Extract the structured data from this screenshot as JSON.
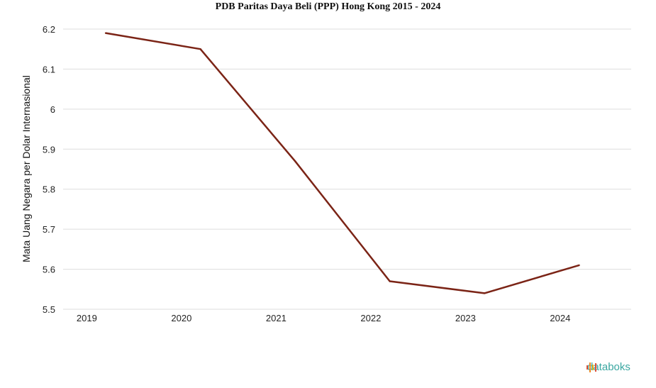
{
  "chart_data": {
    "type": "line",
    "title": "PDB Paritas Daya Beli (PPP) Hong Kong 2015 - 2024",
    "xlabel": "",
    "ylabel": "Mata Uang Negara per Dolar Internasional",
    "categories": [
      "2019",
      "2020",
      "2021",
      "2022",
      "2023",
      "2024"
    ],
    "series": [
      {
        "values": [
          6.19,
          6.15,
          5.87,
          5.57,
          5.54,
          5.61
        ]
      }
    ],
    "ylim": [
      5.5,
      6.2
    ],
    "yticks": [
      "5.5",
      "5.6",
      "5.7",
      "5.8",
      "5.9",
      "6",
      "6.1",
      "6.2"
    ],
    "grid": true,
    "line_color": "#7b2416"
  },
  "brand": {
    "name": "databoks",
    "icon": "databoks-logo-icon",
    "color": "#3aa7a1"
  }
}
